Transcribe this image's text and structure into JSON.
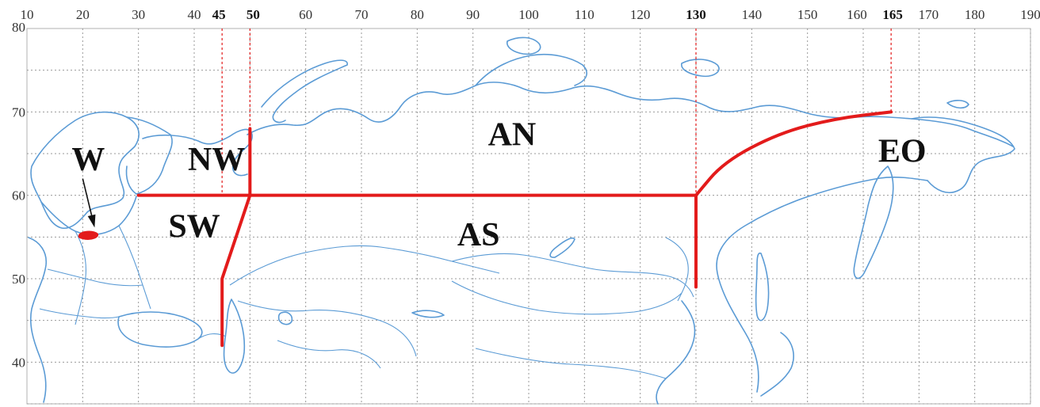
{
  "map": {
    "lon_ticks": [
      10,
      20,
      30,
      40,
      45,
      50,
      60,
      70,
      80,
      90,
      100,
      110,
      120,
      130,
      140,
      150,
      160,
      165,
      170,
      180,
      190
    ],
    "bold_lon_ticks": [
      45,
      50,
      130,
      165
    ],
    "lat_ticks": [
      40,
      50,
      60,
      70,
      80
    ],
    "lon_range": [
      10,
      190
    ],
    "lat_range": [
      35,
      80
    ],
    "gridlines": "dotted",
    "coastline_color": "#5b9bd5",
    "boundary_color": "#e31b1b",
    "regions": [
      {
        "label": "W",
        "lon": 21,
        "lat": 63
      },
      {
        "label": "NW",
        "lon": 44,
        "lat": 63
      },
      {
        "label": "SW",
        "lon": 40,
        "lat": 55
      },
      {
        "label": "AN",
        "lon": 97,
        "lat": 66
      },
      {
        "label": "AS",
        "lon": 91,
        "lat": 54
      },
      {
        "label": "EO",
        "lon": 167,
        "lat": 64
      }
    ],
    "boundaries": [
      {
        "name": "lat-60",
        "points": [
          [
            30,
            60
          ],
          [
            130,
            60
          ]
        ]
      },
      {
        "name": "nw-line",
        "points": [
          [
            50,
            68
          ],
          [
            50,
            60
          ]
        ]
      },
      {
        "name": "sw-line",
        "points": [
          [
            50,
            60
          ],
          [
            45,
            50
          ],
          [
            45,
            42
          ]
        ]
      },
      {
        "name": "as-east",
        "points": [
          [
            130,
            60
          ],
          [
            130,
            49
          ]
        ]
      },
      {
        "name": "eo-arc",
        "points": [
          [
            130,
            60
          ],
          [
            135,
            64
          ],
          [
            145,
            67.5
          ],
          [
            155,
            69.2
          ],
          [
            165,
            70
          ]
        ]
      }
    ],
    "guides": [
      45,
      50,
      130,
      165
    ],
    "w_area": {
      "lon": 21,
      "lat": 55.2,
      "arrow_from": [
        20,
        62
      ],
      "arrow_to": [
        22,
        56.5
      ]
    }
  }
}
